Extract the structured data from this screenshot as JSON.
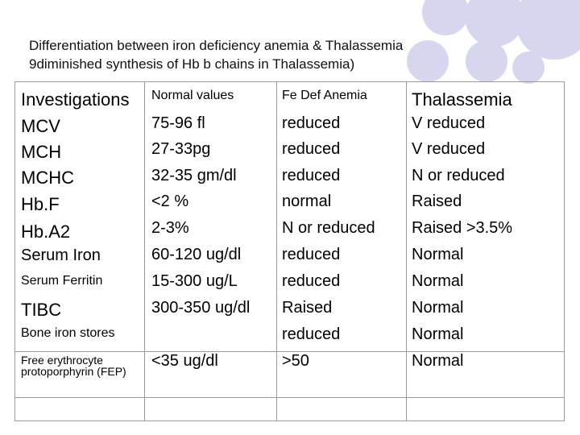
{
  "title": {
    "line1": "Differentiation between  iron deficiency anemia & Thalassemia",
    "line2": "9diminished synthesis of Hb b chains in Thalassemia)"
  },
  "table": {
    "headers": [
      "Investigations",
      "Normal values",
      "Fe Def Anemia",
      "Thalassemia"
    ],
    "rows": [
      {
        "investigation": "MCV",
        "normal": "75-96 fl",
        "fe_def": "reduced",
        "thal": "V reduced"
      },
      {
        "investigation": "MCH",
        "normal": "27-33pg",
        "fe_def": "reduced",
        "thal": "V reduced"
      },
      {
        "investigation": "MCHC",
        "normal": "32-35 gm/dl",
        "fe_def": "reduced",
        "thal": "N or reduced"
      },
      {
        "investigation": "Hb.F",
        "normal": "<2 %",
        "fe_def": "normal",
        "thal": "Raised"
      },
      {
        "investigation": "Hb.A2",
        "normal": "2-3%",
        "fe_def": "N or reduced",
        "thal": "Raised >3.5%"
      },
      {
        "investigation": "Serum Iron",
        "normal": "60-120 ug/dl",
        "fe_def": "reduced",
        "thal": "Normal"
      },
      {
        "investigation": "Serum Ferritin",
        "normal": "15-300 ug/L",
        "fe_def": "reduced",
        "thal": "Normal"
      },
      {
        "investigation": "TIBC",
        "normal": "300-350 ug/dl",
        "fe_def": "Raised",
        "thal": "Normal"
      },
      {
        "investigation": "Bone iron stores",
        "normal": "",
        "fe_def": "reduced",
        "thal": "Normal"
      },
      {
        "investigation": "Free erythrocyte protoporphyrin (FEP)",
        "normal": "<35 ug/dl",
        "fe_def": ">50",
        "thal": "Normal"
      }
    ]
  },
  "decor": {
    "circle_color": "#d6d6ef"
  }
}
